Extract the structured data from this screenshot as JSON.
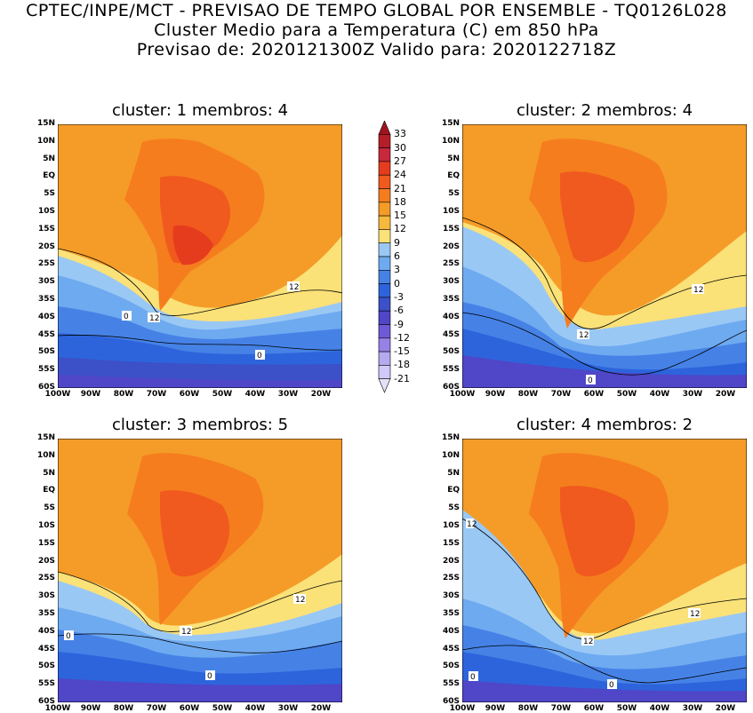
{
  "header": {
    "line1": "CPTEC/INPE/MCT - PREVISAO DE TEMPO GLOBAL POR ENSEMBLE - TQ0126L028",
    "line2": "Cluster Medio para a Temperatura (C) em 850 hPa",
    "line3": "Previsao de: 2020121300Z   Valido para: 2020122718Z"
  },
  "panels": [
    {
      "title": "cluster: 1   membros: 4",
      "contour_labels": [
        "12",
        "12",
        "0",
        "0"
      ]
    },
    {
      "title": "cluster: 2   membros: 4",
      "contour_labels": [
        "12",
        "12",
        "0"
      ]
    },
    {
      "title": "cluster: 3   membros: 5",
      "contour_labels": [
        "12",
        "12",
        "0",
        "0"
      ]
    },
    {
      "title": "cluster: 4   membros: 2",
      "contour_labels": [
        "12",
        "12",
        "12",
        "0",
        "0"
      ]
    }
  ],
  "lat_ticks": [
    "15N",
    "10N",
    "5N",
    "EQ",
    "5S",
    "10S",
    "15S",
    "20S",
    "25S",
    "30S",
    "35S",
    "40S",
    "45S",
    "50S",
    "55S",
    "60S"
  ],
  "lon_ticks": [
    "100W",
    "90W",
    "80W",
    "70W",
    "60W",
    "50W",
    "40W",
    "30W",
    "20W"
  ],
  "colorbar": {
    "labels": [
      "33",
      "30",
      "27",
      "24",
      "21",
      "18",
      "15",
      "12",
      "9",
      "6",
      "3",
      "0",
      "-3",
      "-6",
      "-9",
      "-12",
      "-15",
      "-18",
      "-21"
    ],
    "colors": [
      "#a0141e",
      "#b41e28",
      "#c8283c",
      "#e63c1e",
      "#f05a1e",
      "#f57d1e",
      "#f59b28",
      "#f5b93c",
      "#fae178",
      "#9ac8f5",
      "#6eaaf0",
      "#4682e6",
      "#2d64dc",
      "#3c50c8",
      "#5046c8",
      "#6e5ad7",
      "#9682e6",
      "#b4aaf0",
      "#d2c8fa",
      "#e6e0fa"
    ]
  }
}
